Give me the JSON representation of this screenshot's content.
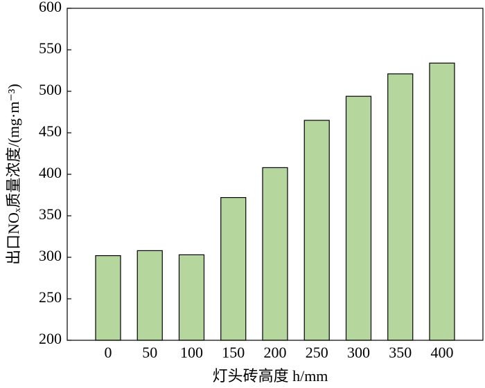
{
  "chart_data": {
    "type": "bar",
    "xlabel": "灯头砖高度 h/mm",
    "ylabel": "出口NOₓ质量浓度/(mg·m⁻³)",
    "categories": [
      "0",
      "50",
      "100",
      "150",
      "200",
      "250",
      "300",
      "350",
      "400"
    ],
    "values": [
      302,
      308,
      303,
      372,
      408,
      465,
      494,
      521,
      534
    ],
    "color": "#b5d79e",
    "ylim": [
      200,
      600
    ],
    "yticks": [
      200,
      250,
      300,
      350,
      400,
      450,
      500,
      550,
      600
    ]
  }
}
